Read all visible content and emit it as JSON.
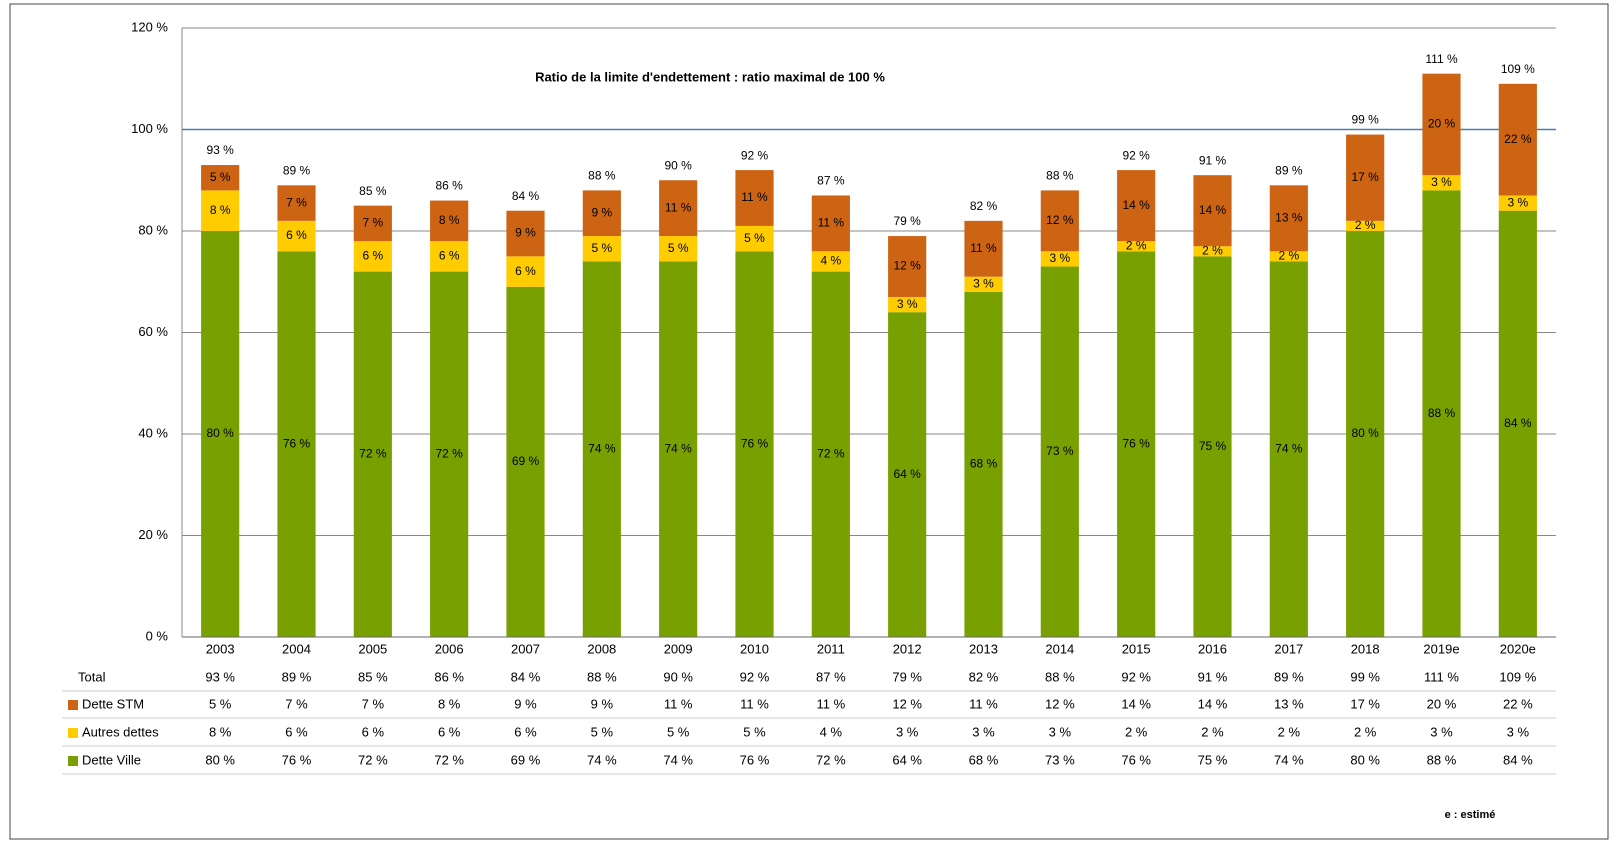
{
  "chart_data": {
    "type": "stacked_bar",
    "title": "Ratio de la limite d'endettement : ratio maximal de 100 %",
    "footnote": "e : estimé",
    "categories": [
      "2003",
      "2004",
      "2005",
      "2006",
      "2007",
      "2008",
      "2009",
      "2010",
      "2011",
      "2012",
      "2013",
      "2014",
      "2015",
      "2016",
      "2017",
      "2018",
      "2019e",
      "2020e"
    ],
    "series": [
      {
        "name": "Dette STM",
        "color": "#cc6414",
        "values": [
          5,
          7,
          7,
          8,
          9,
          9,
          11,
          11,
          11,
          12,
          11,
          12,
          14,
          14,
          13,
          17,
          20,
          22
        ],
        "value_labels": [
          "5 %",
          "7 %",
          "7 %",
          "8 %",
          "9 %",
          "9 %",
          "11 %",
          "11 %",
          "11 %",
          "12 %",
          "11 %",
          "12 %",
          "14 %",
          "14 %",
          "13 %",
          "17 %",
          "20 %",
          "22 %"
        ]
      },
      {
        "name": "Autres dettes",
        "color": "#ffcc00",
        "values": [
          8,
          6,
          6,
          6,
          6,
          5,
          5,
          5,
          4,
          3,
          3,
          3,
          2,
          2,
          2,
          2,
          3,
          3
        ],
        "value_labels": [
          "8 %",
          "6 %",
          "6 %",
          "6 %",
          "6 %",
          "5 %",
          "5 %",
          "5 %",
          "4 %",
          "3 %",
          "3 %",
          "3 %",
          "2 %",
          "2 %",
          "2 %",
          "2 %",
          "3 %",
          "3 %"
        ]
      },
      {
        "name": "Dette Ville",
        "color": "#77a000",
        "values": [
          80,
          76,
          72,
          72,
          69,
          74,
          74,
          76,
          72,
          64,
          68,
          73,
          76,
          75,
          74,
          80,
          88,
          84
        ],
        "value_labels": [
          "80 %",
          "76 %",
          "72 %",
          "72 %",
          "69 %",
          "74 %",
          "74 %",
          "76 %",
          "72 %",
          "64 %",
          "68 %",
          "73 %",
          "76 %",
          "75 %",
          "74 %",
          "80 %",
          "88 %",
          "84 %"
        ]
      }
    ],
    "total": {
      "name": "Total",
      "values": [
        93,
        89,
        85,
        86,
        84,
        88,
        90,
        92,
        87,
        79,
        82,
        88,
        92,
        91,
        89,
        99,
        111,
        109
      ],
      "value_labels": [
        "93 %",
        "89 %",
        "85 %",
        "86 %",
        "84 %",
        "88 %",
        "90 %",
        "92 %",
        "87 %",
        "79 %",
        "82 %",
        "88 %",
        "92 %",
        "91 %",
        "89 %",
        "99 %",
        "111 %",
        "109 %"
      ]
    },
    "reference_line": 100,
    "reference_color": "#4a7ab0",
    "ylim": [
      0,
      120
    ],
    "yticks": [
      {
        "value": 0,
        "label": "0 %"
      },
      {
        "value": 20,
        "label": "20 %"
      },
      {
        "value": 40,
        "label": "40 %"
      },
      {
        "value": 60,
        "label": "60 %"
      },
      {
        "value": 80,
        "label": "80 %"
      },
      {
        "value": 100,
        "label": "100 %"
      },
      {
        "value": 120,
        "label": "120 %"
      }
    ],
    "grid": true
  }
}
